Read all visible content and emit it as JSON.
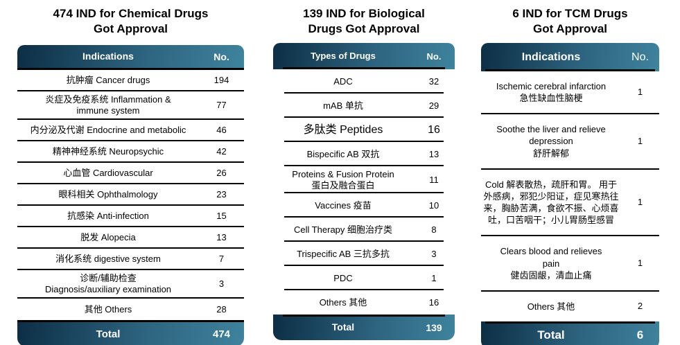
{
  "colors": {
    "header_dark": "#0c2e45",
    "header_mid": "#2d637e",
    "header_light": "#3f839d",
    "line": "#000000",
    "text": "#000000",
    "header_text": "#ffffff"
  },
  "tables": [
    {
      "title": "474 IND for Chemical Drugs\nGot Approval",
      "columns": {
        "label": "Indications",
        "value": "No."
      },
      "rows": [
        {
          "label": "抗肿瘤 Cancer drugs",
          "value": "194"
        },
        {
          "label": "炎症及免疫系统 Inflammation &\nimmune system",
          "value": "77"
        },
        {
          "label": "内分泌及代谢 Endocrine and metabolic",
          "value": "46"
        },
        {
          "label": "精神神经系统 Neuropsychic",
          "value": "42"
        },
        {
          "label": "心血管 Cardiovascular",
          "value": "26"
        },
        {
          "label": "眼科相关 Ophthalmology",
          "value": "23"
        },
        {
          "label": "抗感染 Anti-infection",
          "value": "15"
        },
        {
          "label": "脱发 Alopecia",
          "value": "13"
        },
        {
          "label": "消化系统 digestive system",
          "value": "7"
        },
        {
          "label": "诊断/辅助检查\nDiagnosis/auxiliary examination",
          "value": "3"
        },
        {
          "label": "其他 Others",
          "value": "28"
        }
      ],
      "total": {
        "label": "Total",
        "value": "474"
      }
    },
    {
      "title": "139 IND for Biological\nDrugs Got Approval",
      "columns": {
        "label": "Types of Drugs",
        "value": "No."
      },
      "rows": [
        {
          "label": "ADC",
          "value": "32"
        },
        {
          "label": "mAB 单抗",
          "value": "29"
        },
        {
          "label": "多肽类 Peptides",
          "value": "16",
          "size": "large"
        },
        {
          "label": "Bispecific AB 双抗",
          "value": "13"
        },
        {
          "label": "Proteins & Fusion Protein\n蛋白及融合蛋白",
          "value": "11"
        },
        {
          "label": "Vaccines 疫苗",
          "value": "10"
        },
        {
          "label": "Cell Therapy 细胞治疗类",
          "value": "8"
        },
        {
          "label": "Trispecific AB 三抗多抗",
          "value": "3"
        },
        {
          "label": "PDC",
          "value": "1"
        },
        {
          "label": "Others 其他",
          "value": "16"
        }
      ],
      "total": {
        "label": "Total",
        "value": "139"
      }
    },
    {
      "title": "6 IND for TCM Drugs\nGot Approval",
      "columns": {
        "label": "Indications",
        "value": "No."
      },
      "rows": [
        {
          "label": "Ischemic cerebral infarction\n急性缺血性脑梗",
          "value": "1"
        },
        {
          "label": "Soothe the liver and relieve\ndepression\n舒肝解郁",
          "value": "1"
        },
        {
          "label": "Cold 解表散热，疏肝和胃。 用于外感病，邪犯少阳证，症见寒热往来，胸胁苦满，食欲不振、心烦喜吐，口苦咽干；小儿胃肠型感冒",
          "value": "1"
        },
        {
          "label": "Clears blood and relieves\npain\n健齿固龈，清血止痛",
          "value": "1"
        },
        {
          "label": "Others 其他",
          "value": "2"
        }
      ],
      "total": {
        "label": "Total",
        "value": "6"
      }
    }
  ]
}
